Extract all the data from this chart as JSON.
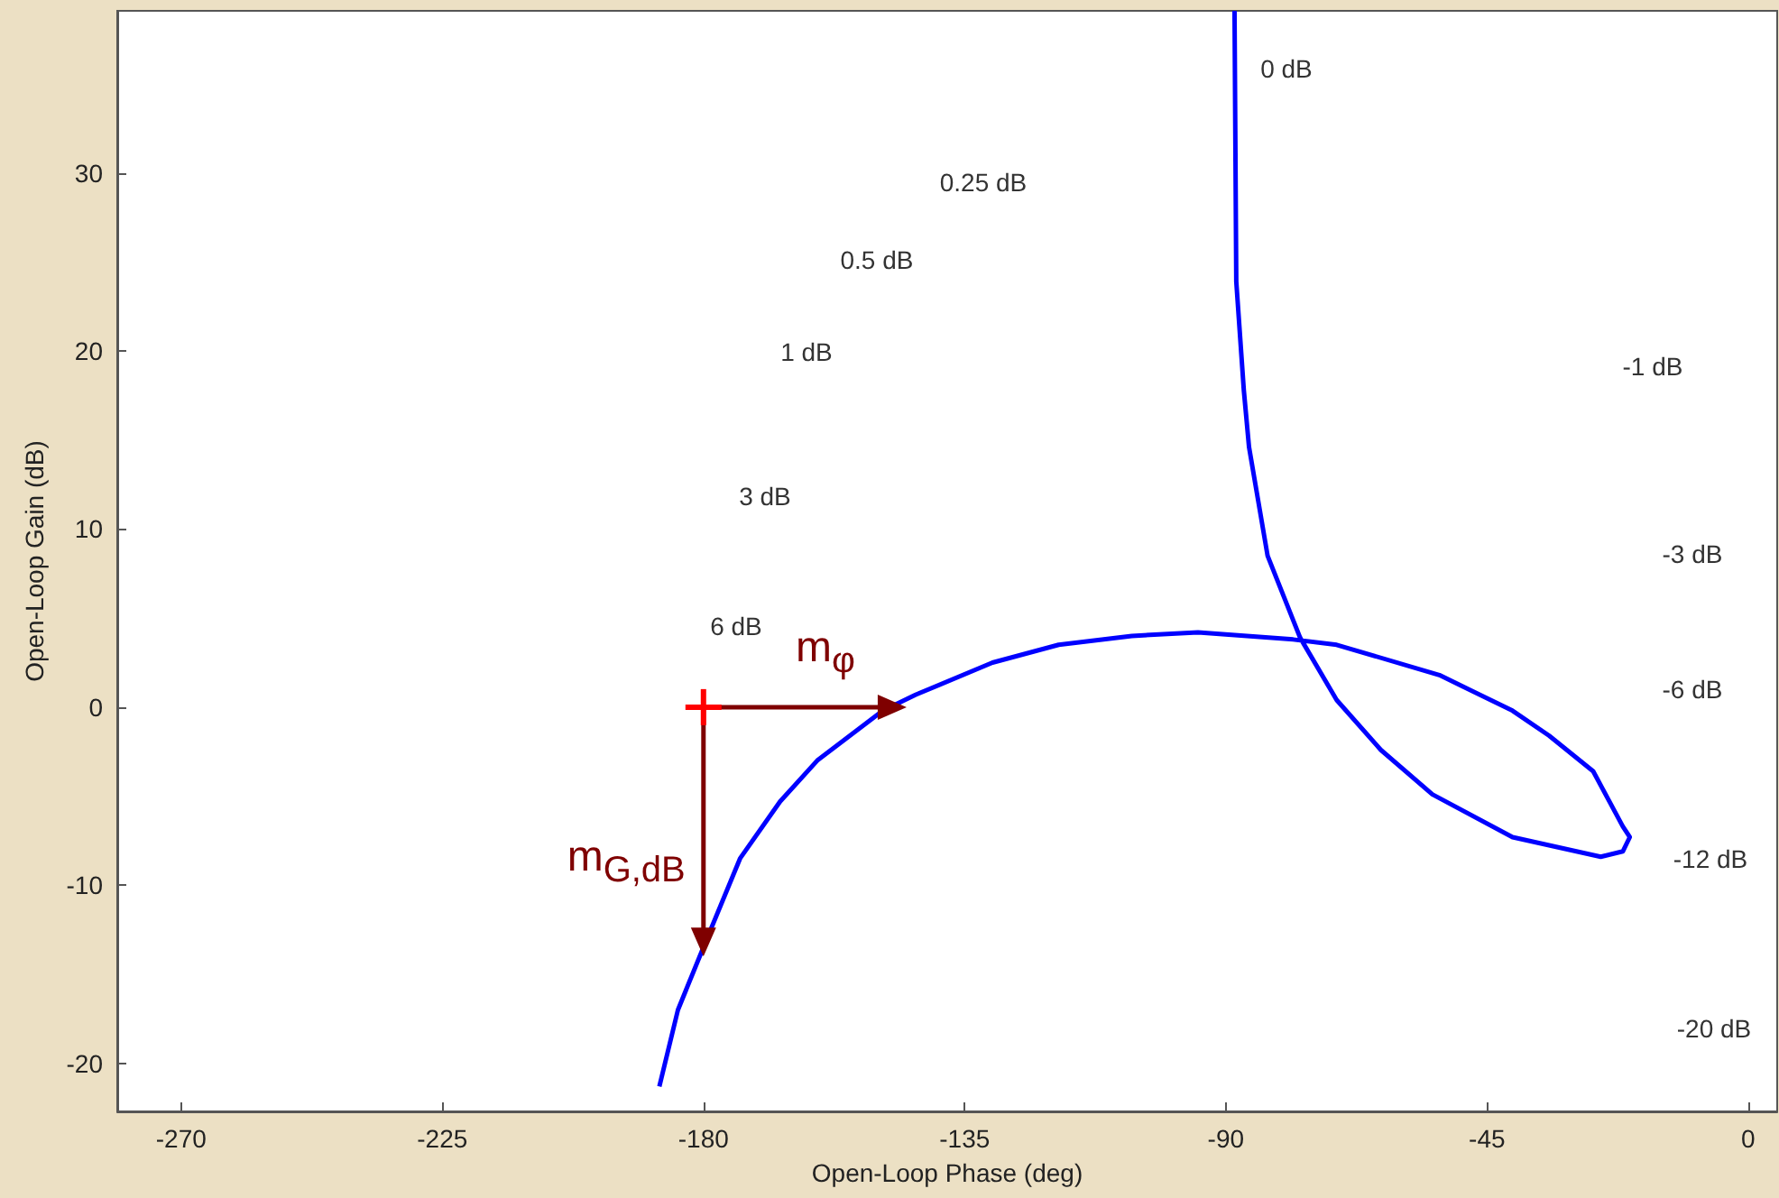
{
  "chart_data": {
    "type": "line",
    "xlabel": "Open-Loop Phase (deg)",
    "ylabel": "Open-Loop Gain (dB)",
    "xlim": [
      -281,
      5
    ],
    "xticks": [
      -270,
      -225,
      -180,
      -135,
      -90,
      -45,
      0
    ],
    "ylim": [
      -22.7,
      39.1
    ],
    "yticks": [
      -20,
      -10,
      0,
      10,
      20,
      30
    ],
    "grid": false,
    "marker": "none",
    "line_style": "solid",
    "series": [
      {
        "color": "#0000ff",
        "x": [
          -88.5,
          -88.2,
          -86.9,
          -86.0,
          -82.8,
          -77.2,
          -70.9,
          -63.3,
          -54.4,
          -40.6,
          -25.4,
          -21.6,
          -20.4,
          -21.6,
          -26.7,
          -34.3,
          -40.6,
          -53.2,
          -70.9,
          -78.4,
          -94.8,
          -106.2,
          -118.8,
          -130.2,
          -143.4,
          -149.1,
          -160.4,
          -166.8,
          -173.7,
          -179.4,
          -184.4,
          -187.6
        ],
        "values": [
          39.1,
          23.9,
          17.8,
          14.6,
          8.5,
          3.9,
          0.4,
          -2.4,
          -4.9,
          -7.3,
          -8.4,
          -8.1,
          -7.3,
          -6.7,
          -3.6,
          -1.6,
          -0.2,
          1.8,
          3.5,
          3.8,
          4.2,
          4.0,
          3.5,
          2.5,
          0.7,
          -0.2,
          -3.0,
          -5.3,
          -8.5,
          -13.0,
          -17.0,
          -21.3
        ]
      }
    ],
    "annotations": [
      {
        "text": "m$_{φ}$",
        "x": -145,
        "y": 0
      },
      {
        "text": "m$_{G,dB}$",
        "x": -180,
        "y": -14
      },
      "0 dB",
      "0.25 dB",
      "0.5 dB",
      "1 dB",
      "3 dB",
      "6 dB",
      "-1 dB",
      "-3 dB",
      "-6 dB",
      "-12 dB",
      "-20 dB"
    ]
  }
}
